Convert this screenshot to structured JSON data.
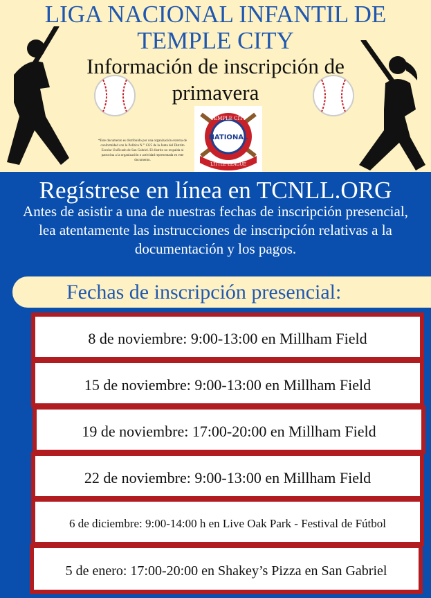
{
  "header": {
    "title_line1": "LIGA NACIONAL INFANTIL DE",
    "title_line2": "TEMPLE CITY",
    "subtitle_line1": "Información de inscripción de",
    "subtitle_line2": "primavera",
    "disclaimer": "*Este documento es distribuido por una organización externa de conformidad con la Política N.° 1325 de la Junta del Distrito Escolar Unificado de San Gabriel. El distrito no respalda ni patrocina a la organización o actividad representada en este documento.",
    "logo_text": [
      "TEMPLE CITY",
      "NATIONAL",
      "LITTLE LEAGUE"
    ]
  },
  "register": {
    "heading": "Regístrese en línea en TCNLL.ORG",
    "body": "Antes de asistir a una de nuestras fechas de inscripción presencial, lea atentamente las instrucciones de inscripción relativas a la documentación y los pagos."
  },
  "dates": {
    "heading": "Fechas de inscripción presencial:",
    "items": [
      "8 de noviembre: 9:00-13:00 en Millham Field",
      "15 de noviembre: 9:00-13:00 en Millham Field",
      "19 de noviembre: 17:00-20:00 en Millham Field",
      "22 de noviembre: 9:00-13:00 en Millham Field",
      "6 de diciembre: 9:00-14:00 h en Live Oak Park - Festival de Fútbol",
      "5 de enero: 17:00-20:00 en Shakey’s Pizza en San Gabriel"
    ]
  },
  "colors": {
    "blue": "#0a4fae",
    "cream": "#fef2c4",
    "red": "#b01c20"
  }
}
